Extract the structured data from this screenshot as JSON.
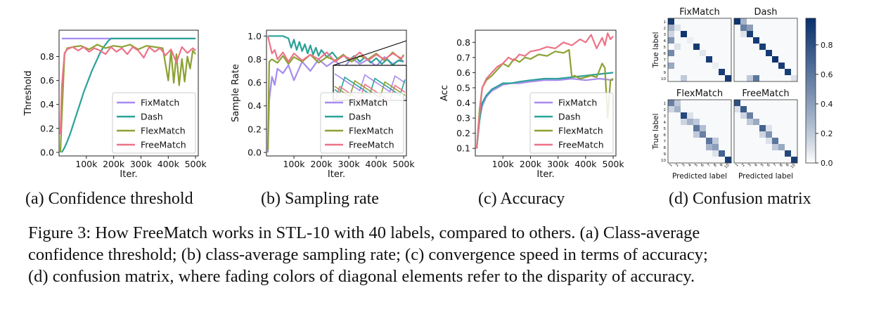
{
  "chart_data": [
    {
      "type": "line",
      "id": "a",
      "subcaption": "(a) Confidence threshold",
      "xlabel": "Iter.",
      "ylabel": "Threshold",
      "xlim": [
        0,
        510000
      ],
      "ylim": [
        -0.03,
        1.02
      ],
      "xticks": [
        100000,
        200000,
        300000,
        400000,
        500000
      ],
      "xtick_labels": [
        "100k",
        "200k",
        "300k",
        "400k",
        "500k"
      ],
      "yticks": [
        0.0,
        0.2,
        0.4,
        0.6,
        0.8
      ],
      "ytick_labels": [
        "0.0",
        "0.2",
        "0.4",
        "0.6",
        "0.8"
      ],
      "legend": {
        "position": "lower-right",
        "entries": [
          "FixMatch",
          "Dash",
          "FlexMatch",
          "FreeMatch"
        ]
      },
      "series": [
        {
          "name": "FixMatch",
          "color": "#a78bf0",
          "x": [
            10000,
            500000
          ],
          "y": [
            0.95,
            0.95
          ]
        },
        {
          "name": "Dash",
          "color": "#2aa198",
          "x": [
            10000,
            20000,
            30000,
            40000,
            50000,
            60000,
            70000,
            80000,
            90000,
            100000,
            110000,
            120000,
            130000,
            140000,
            150000,
            160000,
            170000,
            180000,
            190000,
            200000,
            500000
          ],
          "y": [
            0.0,
            0.04,
            0.09,
            0.15,
            0.22,
            0.29,
            0.36,
            0.43,
            0.5,
            0.56,
            0.62,
            0.68,
            0.73,
            0.78,
            0.83,
            0.87,
            0.9,
            0.93,
            0.95,
            0.95,
            0.95
          ]
        },
        {
          "name": "FlexMatch",
          "color": "#8ca132",
          "x": [
            5000,
            10000,
            20000,
            30000,
            50000,
            80000,
            110000,
            140000,
            170000,
            200000,
            230000,
            260000,
            290000,
            320000,
            350000,
            380000,
            400000,
            410000,
            420000,
            430000,
            440000,
            450000,
            460000,
            470000,
            480000,
            490000,
            500000
          ],
          "y": [
            0.0,
            0.3,
            0.82,
            0.87,
            0.88,
            0.89,
            0.86,
            0.9,
            0.87,
            0.89,
            0.88,
            0.9,
            0.86,
            0.89,
            0.88,
            0.87,
            0.6,
            0.85,
            0.58,
            0.82,
            0.56,
            0.78,
            0.59,
            0.8,
            0.7,
            0.85,
            0.82
          ]
        },
        {
          "name": "FreeMatch",
          "color": "#ec7388",
          "x": [
            5000,
            10000,
            20000,
            30000,
            50000,
            70000,
            90000,
            110000,
            130000,
            150000,
            170000,
            190000,
            210000,
            230000,
            250000,
            270000,
            290000,
            310000,
            330000,
            350000,
            370000,
            390000,
            410000,
            430000,
            450000,
            470000,
            490000,
            500000
          ],
          "y": [
            0.15,
            0.55,
            0.83,
            0.86,
            0.88,
            0.85,
            0.88,
            0.84,
            0.87,
            0.85,
            0.82,
            0.88,
            0.84,
            0.87,
            0.82,
            0.88,
            0.85,
            0.79,
            0.88,
            0.84,
            0.87,
            0.81,
            0.86,
            0.75,
            0.88,
            0.83,
            0.87,
            0.85
          ]
        }
      ]
    },
    {
      "type": "line",
      "id": "b",
      "subcaption": "(b) Sampling rate",
      "xlabel": "Iter.",
      "ylabel": "Sample Rate",
      "xlim": [
        0,
        510000
      ],
      "ylim": [
        -0.03,
        1.05
      ],
      "xticks": [
        100000,
        200000,
        300000,
        400000,
        500000
      ],
      "xtick_labels": [
        "100k",
        "200k",
        "300k",
        "400k",
        "500k"
      ],
      "yticks": [
        0.0,
        0.2,
        0.4,
        0.6,
        0.8,
        1.0
      ],
      "ytick_labels": [
        "0.0",
        "0.2",
        "0.4",
        "0.6",
        "0.8",
        "1.0"
      ],
      "legend": {
        "position": "lower-right",
        "entries": [
          "FixMatch",
          "Dash",
          "FlexMatch",
          "FreeMatch"
        ]
      },
      "inset": true,
      "series": [
        {
          "name": "FixMatch",
          "color": "#a78bf0",
          "x": [
            5000,
            10000,
            20000,
            30000,
            40000,
            60000,
            80000,
            100000,
            130000,
            160000,
            190000,
            220000,
            250000,
            280000,
            310000,
            340000,
            370000,
            400000,
            430000,
            460000,
            490000,
            500000
          ],
          "y": [
            0.0,
            0.45,
            0.65,
            0.58,
            0.72,
            0.68,
            0.75,
            0.62,
            0.78,
            0.7,
            0.8,
            0.74,
            0.79,
            0.72,
            0.81,
            0.76,
            0.8,
            0.74,
            0.82,
            0.76,
            0.8,
            0.78
          ]
        },
        {
          "name": "Dash",
          "color": "#2aa198",
          "x": [
            5000,
            20000,
            40000,
            60000,
            80000,
            90000,
            100000,
            110000,
            120000,
            130000,
            140000,
            150000,
            160000,
            170000,
            180000,
            190000,
            200000,
            220000,
            240000,
            260000,
            280000,
            300000,
            320000,
            340000,
            360000,
            380000,
            400000,
            420000,
            440000,
            460000,
            480000,
            500000
          ],
          "y": [
            1.0,
            1.0,
            1.0,
            1.0,
            0.98,
            0.9,
            0.97,
            0.88,
            0.95,
            0.87,
            0.93,
            0.85,
            0.92,
            0.84,
            0.9,
            0.83,
            0.88,
            0.82,
            0.86,
            0.8,
            0.84,
            0.79,
            0.83,
            0.78,
            0.82,
            0.77,
            0.81,
            0.76,
            0.8,
            0.75,
            0.79,
            0.78
          ]
        },
        {
          "name": "FlexMatch",
          "color": "#8ca132",
          "x": [
            5000,
            10000,
            20000,
            40000,
            60000,
            80000,
            100000,
            130000,
            160000,
            190000,
            220000,
            250000,
            280000,
            310000,
            340000,
            370000,
            400000,
            430000,
            460000,
            490000,
            500000
          ],
          "y": [
            0.02,
            0.78,
            0.8,
            0.77,
            0.83,
            0.76,
            0.82,
            0.78,
            0.84,
            0.77,
            0.82,
            0.79,
            0.84,
            0.78,
            0.83,
            0.8,
            0.85,
            0.79,
            0.86,
            0.8,
            0.84
          ]
        },
        {
          "name": "FreeMatch",
          "color": "#ec7388",
          "x": [
            5000,
            10000,
            20000,
            30000,
            40000,
            60000,
            80000,
            100000,
            130000,
            160000,
            190000,
            220000,
            250000,
            280000,
            310000,
            340000,
            370000,
            400000,
            430000,
            460000,
            490000,
            500000
          ],
          "y": [
            1.0,
            0.95,
            0.85,
            0.88,
            0.8,
            0.86,
            0.78,
            0.85,
            0.79,
            0.84,
            0.8,
            0.86,
            0.78,
            0.83,
            0.8,
            0.86,
            0.79,
            0.84,
            0.8,
            0.85,
            0.81,
            0.83
          ]
        }
      ]
    },
    {
      "type": "line",
      "id": "c",
      "subcaption": "(c) Accuracy",
      "xlabel": "Iter.",
      "ylabel": "Acc",
      "xlim": [
        0,
        510000
      ],
      "ylim": [
        0.05,
        0.88
      ],
      "xticks": [
        100000,
        200000,
        300000,
        400000,
        500000
      ],
      "xtick_labels": [
        "100k",
        "200k",
        "300k",
        "400k",
        "500k"
      ],
      "yticks": [
        0.1,
        0.2,
        0.3,
        0.4,
        0.5,
        0.6,
        0.7,
        0.8
      ],
      "ytick_labels": [
        "0.1",
        "0.2",
        "0.3",
        "0.4",
        "0.5",
        "0.6",
        "0.7",
        "0.8"
      ],
      "legend": {
        "position": "lower-right",
        "entries": [
          "FixMatch",
          "Dash",
          "FlexMatch",
          "FreeMatch"
        ]
      },
      "series": [
        {
          "name": "FixMatch",
          "color": "#a78bf0",
          "x": [
            5000,
            15000,
            25000,
            40000,
            60000,
            80000,
            100000,
            130000,
            160000,
            200000,
            250000,
            300000,
            350000,
            400000,
            450000,
            500000
          ],
          "y": [
            0.1,
            0.3,
            0.38,
            0.44,
            0.48,
            0.5,
            0.52,
            0.53,
            0.53,
            0.54,
            0.55,
            0.55,
            0.56,
            0.55,
            0.56,
            0.55
          ]
        },
        {
          "name": "Dash",
          "color": "#2aa198",
          "x": [
            5000,
            15000,
            25000,
            40000,
            60000,
            80000,
            100000,
            130000,
            160000,
            200000,
            250000,
            300000,
            350000,
            400000,
            450000,
            500000
          ],
          "y": [
            0.1,
            0.28,
            0.4,
            0.45,
            0.49,
            0.51,
            0.53,
            0.53,
            0.54,
            0.55,
            0.56,
            0.56,
            0.57,
            0.58,
            0.59,
            0.6
          ]
        },
        {
          "name": "FlexMatch",
          "color": "#8ca132",
          "x": [
            5000,
            15000,
            25000,
            40000,
            60000,
            80000,
            100000,
            120000,
            140000,
            160000,
            180000,
            200000,
            230000,
            260000,
            290000,
            320000,
            340000,
            350000,
            360000,
            380000,
            400000,
            420000,
            440000,
            460000,
            470000,
            480000,
            490000,
            500000
          ],
          "y": [
            0.1,
            0.35,
            0.5,
            0.55,
            0.58,
            0.62,
            0.66,
            0.64,
            0.69,
            0.67,
            0.7,
            0.69,
            0.72,
            0.71,
            0.74,
            0.73,
            0.75,
            0.57,
            0.58,
            0.56,
            0.57,
            0.58,
            0.57,
            0.66,
            0.63,
            0.3,
            0.55,
            0.56
          ]
        },
        {
          "name": "FreeMatch",
          "color": "#ec7388",
          "x": [
            5000,
            15000,
            25000,
            40000,
            60000,
            80000,
            100000,
            120000,
            140000,
            160000,
            180000,
            200000,
            230000,
            260000,
            290000,
            320000,
            350000,
            380000,
            400000,
            420000,
            440000,
            460000,
            470000,
            480000,
            490000,
            500000
          ],
          "y": [
            0.1,
            0.32,
            0.5,
            0.56,
            0.6,
            0.64,
            0.66,
            0.7,
            0.68,
            0.72,
            0.71,
            0.74,
            0.75,
            0.77,
            0.76,
            0.8,
            0.78,
            0.82,
            0.8,
            0.85,
            0.76,
            0.83,
            0.78,
            0.86,
            0.82,
            0.84
          ]
        }
      ]
    },
    {
      "type": "heatmap",
      "id": "d",
      "subcaption": "(d) Confusion matrix",
      "ylabel": "True label",
      "xlabel": "Predicted label",
      "tick_labels": [
        "1",
        "2",
        "3",
        "4",
        "5",
        "6",
        "7",
        "8",
        "9",
        "10"
      ],
      "colorbar": {
        "ticks": [
          0.0,
          0.2,
          0.4,
          0.6,
          0.8
        ],
        "tick_labels": [
          "0.0",
          "0.2",
          "0.4",
          "0.6",
          "0.8"
        ],
        "max": 0.98
      },
      "panels": [
        {
          "title": "FixMatch",
          "diagonal": [
            0.92,
            0.1,
            0.95,
            0.05,
            0.92,
            0.08,
            0.9,
            0.05,
            0.9,
            0.92
          ],
          "off": [
            [
              2,
              1,
              0.3
            ],
            [
              4,
              1,
              0.45
            ],
            [
              6,
              1,
              0.5
            ],
            [
              8,
              1,
              0.35
            ],
            [
              10,
              3,
              0.2
            ],
            [
              3,
              1,
              0.15
            ],
            [
              5,
              2,
              0.1
            ]
          ]
        },
        {
          "title": "Dash",
          "diagonal": [
            0.95,
            0.55,
            0.9,
            0.92,
            0.9,
            0.92,
            0.95,
            0.9,
            0.9,
            0.1
          ],
          "off": [
            [
              2,
              3,
              0.4
            ],
            [
              1,
              2,
              0.3
            ],
            [
              10,
              4,
              0.6
            ],
            [
              10,
              3,
              0.2
            ],
            [
              3,
              2,
              0.1
            ]
          ]
        },
        {
          "title": "FlexMatch",
          "diagonal": [
            0.55,
            0.3,
            0.85,
            0.3,
            0.6,
            0.55,
            0.6,
            0.4,
            0.7,
            0.9
          ],
          "off": [
            [
              1,
              2,
              0.2
            ],
            [
              2,
              1,
              0.15
            ],
            [
              3,
              4,
              0.1
            ],
            [
              4,
              5,
              0.2
            ],
            [
              5,
              6,
              0.25
            ],
            [
              6,
              5,
              0.2
            ],
            [
              7,
              8,
              0.2
            ],
            [
              8,
              7,
              0.3
            ],
            [
              4,
              3,
              0.15
            ],
            [
              9,
              8,
              0.1
            ]
          ]
        },
        {
          "title": "FreeMatch",
          "diagonal": [
            0.8,
            0.75,
            0.55,
            0.35,
            0.7,
            0.45,
            0.6,
            0.35,
            0.85,
            0.9
          ],
          "off": [
            [
              3,
              2,
              0.15
            ],
            [
              4,
              3,
              0.2
            ],
            [
              6,
              5,
              0.15
            ],
            [
              8,
              7,
              0.2
            ],
            [
              5,
              6,
              0.1
            ],
            [
              2,
              1,
              0.1
            ],
            [
              7,
              6,
              0.1
            ]
          ]
        }
      ]
    }
  ],
  "caption": {
    "lines": [
      "Figure 3: How FreeMatch works in STL-10 with 40 labels, compared to others. (a) Class-average",
      "confidence threshold; (b) class-average sampling rate; (c) convergence speed in terms of accuracy;",
      "(d) confusion matrix, where fading colors of diagonal elements refer to the disparity of accuracy."
    ]
  }
}
